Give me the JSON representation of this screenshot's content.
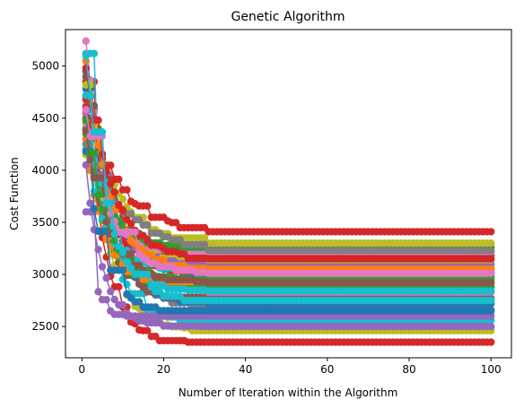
{
  "chart_data": {
    "type": "line",
    "title": "Genetic Algorithm",
    "xlabel": "Number of Iteration within the Algorithm",
    "ylabel": "Cost Function",
    "xlim": [
      -4,
      105
    ],
    "ylim": [
      2200,
      5350
    ],
    "x_ticks": [
      0,
      20,
      40,
      60,
      80,
      100
    ],
    "y_ticks": [
      2500,
      3000,
      3500,
      4000,
      4500,
      5000
    ],
    "x_tick_labels": [
      "0",
      "20",
      "40",
      "60",
      "80",
      "100"
    ],
    "y_tick_labels": [
      "2500",
      "3000",
      "3500",
      "4000",
      "4500",
      "5000"
    ],
    "iterations": 100,
    "marker": "circle",
    "grid": false,
    "legend": "none",
    "series_count": 30,
    "series": [
      {
        "color": "#d62728",
        "start": 4850,
        "end": 2350,
        "rate": 0.22
      },
      {
        "color": "#bcbd22",
        "start": 4700,
        "end": 2460,
        "rate": 0.18
      },
      {
        "color": "#17becf",
        "start": 5120,
        "end": 2560,
        "rate": 0.2
      },
      {
        "color": "#7f7f7f",
        "start": 4620,
        "end": 2660,
        "rate": 0.14
      },
      {
        "color": "#9467bd",
        "start": 3600,
        "end": 2600,
        "rate": 0.45
      },
      {
        "color": "#1f77b4",
        "start": 4950,
        "end": 2720,
        "rate": 0.17
      },
      {
        "color": "#8c564b",
        "start": 4500,
        "end": 2770,
        "rate": 0.19
      },
      {
        "color": "#e377c2",
        "start": 5240,
        "end": 2830,
        "rate": 0.16
      },
      {
        "color": "#2ca02c",
        "start": 4400,
        "end": 2880,
        "rate": 0.21
      },
      {
        "color": "#ff7f0e",
        "start": 4300,
        "end": 2930,
        "rate": 0.23
      },
      {
        "color": "#1f77b4",
        "start": 4780,
        "end": 2980,
        "rate": 0.15
      },
      {
        "color": "#d62728",
        "start": 4680,
        "end": 3020,
        "rate": 0.18
      },
      {
        "color": "#17becf",
        "start": 4200,
        "end": 3060,
        "rate": 0.2
      },
      {
        "color": "#9467bd",
        "start": 4550,
        "end": 3100,
        "rate": 0.17
      },
      {
        "color": "#bcbd22",
        "start": 4150,
        "end": 3140,
        "rate": 0.13
      },
      {
        "color": "#8c564b",
        "start": 4900,
        "end": 3180,
        "rate": 0.16
      },
      {
        "color": "#e377c2",
        "start": 4450,
        "end": 3220,
        "rate": 0.19
      },
      {
        "color": "#2ca02c",
        "start": 4350,
        "end": 3260,
        "rate": 0.18
      },
      {
        "color": "#bcbd22",
        "start": 4820,
        "end": 3300,
        "rate": 0.14
      },
      {
        "color": "#d62728",
        "start": 4600,
        "end": 3410,
        "rate": 0.12
      },
      {
        "color": "#7f7f7f",
        "start": 4250,
        "end": 3230,
        "rate": 0.1
      },
      {
        "color": "#ff7f0e",
        "start": 5050,
        "end": 3050,
        "rate": 0.17
      },
      {
        "color": "#17becf",
        "start": 4720,
        "end": 2840,
        "rate": 0.19
      },
      {
        "color": "#9467bd",
        "start": 4050,
        "end": 2500,
        "rate": 0.24
      },
      {
        "color": "#1f77b4",
        "start": 4180,
        "end": 2650,
        "rate": 0.22
      },
      {
        "color": "#2ca02c",
        "start": 4480,
        "end": 2950,
        "rate": 0.2
      },
      {
        "color": "#d62728",
        "start": 4980,
        "end": 3150,
        "rate": 0.15
      },
      {
        "color": "#8c564b",
        "start": 4380,
        "end": 2920,
        "rate": 0.18
      },
      {
        "color": "#e377c2",
        "start": 4580,
        "end": 3010,
        "rate": 0.16
      },
      {
        "color": "#17becf",
        "start": 5100,
        "end": 2750,
        "rate": 0.18
      }
    ]
  }
}
